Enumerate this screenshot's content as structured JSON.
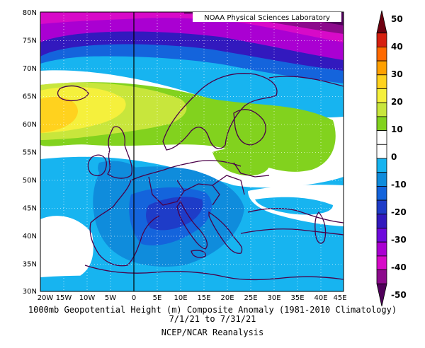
{
  "credit": "NOAA Physical Sciences Laboratory",
  "caption": {
    "title": "1000mb Geopotential Height (m) Composite Anomaly (1981-2010 Climatology)",
    "dates": "7/1/21  to 7/31/21",
    "source": "NCEP/NCAR Reanalysis"
  },
  "lat_labels": [
    "80N",
    "75N",
    "70N",
    "65N",
    "60N",
    "55N",
    "50N",
    "45N",
    "40N",
    "35N",
    "30N"
  ],
  "lon_labels": [
    "20W",
    "15W",
    "10W",
    "5W",
    "0",
    "5E",
    "10E",
    "15E",
    "20E",
    "25E",
    "30E",
    "35E",
    "40E",
    "45E"
  ],
  "colorbar": {
    "labels": [
      "50",
      "40",
      "30",
      "20",
      "10",
      "0",
      "-10",
      "-20",
      "-30",
      "-40",
      "-50"
    ],
    "colors": [
      "#6e0010",
      "#d62010",
      "#ff6a00",
      "#ffa000",
      "#ffd21e",
      "#f5f03c",
      "#c8e63c",
      "#82d21e",
      "#ffffff",
      "#ffffff",
      "#17b4f0",
      "#0f8cdc",
      "#1464dc",
      "#1e3cc8",
      "#3219be",
      "#6e0adc",
      "#aa00d2",
      "#d70ac8",
      "#8c0a8c",
      "#50005a"
    ]
  }
}
